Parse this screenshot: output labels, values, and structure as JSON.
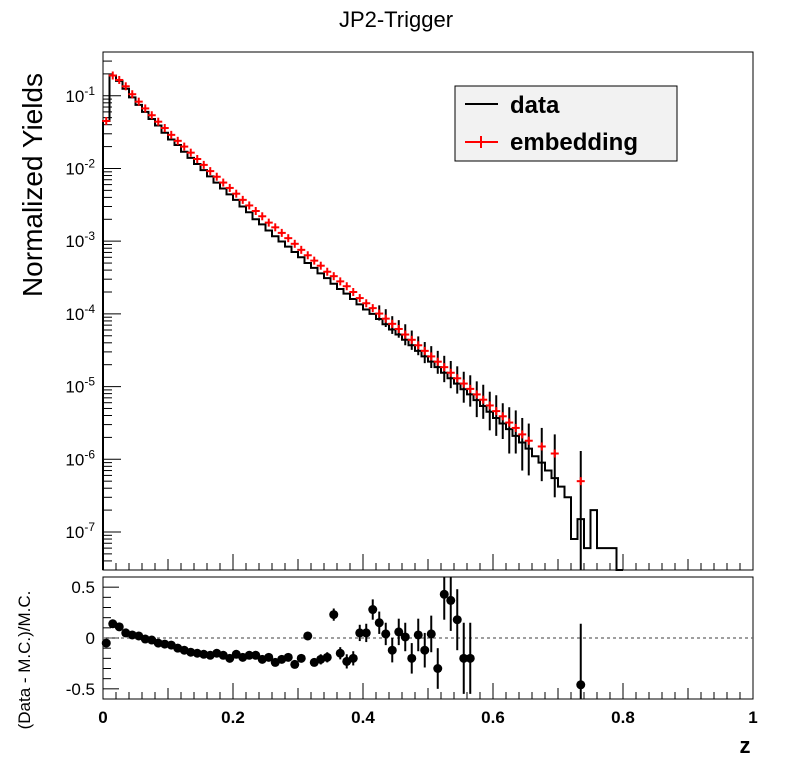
{
  "chart_data": [
    {
      "type": "line",
      "title": "JP2-Trigger",
      "ylabel": "Normalized Yields",
      "xlabel": "",
      "xlim": [
        0,
        1
      ],
      "ylim": [
        3e-08,
        0.4
      ],
      "yscale": "log",
      "grid": false,
      "legend_position": "top-right",
      "xticks": [
        "0",
        "0.2",
        "0.4",
        "0.6",
        "0.8",
        "1"
      ],
      "yticks": [
        {
          "base": "10",
          "exp": "-1",
          "value": 0.1
        },
        {
          "base": "10",
          "exp": "-2",
          "value": 0.01
        },
        {
          "base": "10",
          "exp": "-3",
          "value": 0.001
        },
        {
          "base": "10",
          "exp": "-4",
          "value": 0.0001
        },
        {
          "base": "10",
          "exp": "-5",
          "value": 1e-05
        },
        {
          "base": "10",
          "exp": "-6",
          "value": 1e-06
        },
        {
          "base": "10",
          "exp": "-7",
          "value": 1e-07
        }
      ],
      "series": [
        {
          "name": "data",
          "kind": "histogram",
          "color": "#000000",
          "bin_width": 0.01,
          "x": [
            0.005,
            0.015,
            0.025,
            0.035,
            0.045,
            0.055,
            0.065,
            0.075,
            0.085,
            0.095,
            0.105,
            0.115,
            0.125,
            0.135,
            0.145,
            0.155,
            0.165,
            0.175,
            0.185,
            0.195,
            0.205,
            0.215,
            0.225,
            0.235,
            0.245,
            0.255,
            0.265,
            0.275,
            0.285,
            0.295,
            0.305,
            0.315,
            0.325,
            0.335,
            0.345,
            0.355,
            0.365,
            0.375,
            0.385,
            0.395,
            0.405,
            0.415,
            0.425,
            0.435,
            0.445,
            0.455,
            0.465,
            0.475,
            0.485,
            0.495,
            0.505,
            0.515,
            0.525,
            0.535,
            0.545,
            0.555,
            0.565,
            0.575,
            0.585,
            0.595,
            0.605,
            0.615,
            0.625,
            0.635,
            0.645,
            0.655,
            0.665,
            0.675,
            0.685,
            0.695,
            0.705,
            0.715,
            0.725,
            0.735,
            0.745,
            0.755,
            0.765,
            0.775,
            0.785,
            0.795
          ],
          "y": [
            0.045,
            0.19,
            0.16,
            0.125,
            0.095,
            0.075,
            0.06,
            0.048,
            0.039,
            0.031,
            0.025,
            0.021,
            0.017,
            0.014,
            0.0115,
            0.0095,
            0.0078,
            0.0064,
            0.0053,
            0.0044,
            0.0037,
            0.003,
            0.0025,
            0.002,
            0.0017,
            0.0014,
            0.00117,
            0.00099,
            0.00084,
            0.00071,
            0.0006,
            0.0005,
            0.00043,
            0.00036,
            0.00031,
            0.00026,
            0.00022,
            0.00019,
            0.00016,
            0.000135,
            0.000115,
            0.0001,
            8.5e-05,
            7.2e-05,
            6.1e-05,
            5.2e-05,
            4.4e-05,
            3.7e-05,
            3.1e-05,
            2.6e-05,
            2.2e-05,
            1.85e-05,
            1.55e-05,
            1.3e-05,
            1.1e-05,
            9.2e-06,
            7.8e-06,
            6.5e-06,
            5.4e-06,
            4.5e-06,
            3.7e-06,
            3.1e-06,
            2.6e-06,
            2.1e-06,
            1.7e-06,
            1.4e-06,
            1.1e-06,
            9e-07,
            7e-07,
            5.5e-07,
            4.2e-07,
            3e-07,
            8e-08,
            1.5e-07,
            6e-08,
            2e-07,
            6e-08,
            6e-08,
            6e-08,
            3e-08
          ]
        },
        {
          "name": "embedding",
          "kind": "points",
          "color": "#ff0000",
          "x": [
            0.005,
            0.015,
            0.025,
            0.035,
            0.045,
            0.055,
            0.065,
            0.075,
            0.085,
            0.095,
            0.105,
            0.115,
            0.125,
            0.135,
            0.145,
            0.155,
            0.165,
            0.175,
            0.185,
            0.195,
            0.205,
            0.215,
            0.225,
            0.235,
            0.245,
            0.255,
            0.265,
            0.275,
            0.285,
            0.295,
            0.305,
            0.315,
            0.325,
            0.335,
            0.345,
            0.355,
            0.365,
            0.375,
            0.385,
            0.395,
            0.405,
            0.415,
            0.425,
            0.435,
            0.445,
            0.455,
            0.465,
            0.475,
            0.485,
            0.495,
            0.505,
            0.515,
            0.525,
            0.535,
            0.545,
            0.555,
            0.565,
            0.575,
            0.585,
            0.595,
            0.605,
            0.615,
            0.625,
            0.635,
            0.645,
            0.655,
            0.675,
            0.695,
            0.735
          ],
          "y": [
            0.045,
            0.19,
            0.165,
            0.135,
            0.105,
            0.083,
            0.067,
            0.054,
            0.044,
            0.036,
            0.029,
            0.024,
            0.02,
            0.0165,
            0.0135,
            0.0112,
            0.0092,
            0.0077,
            0.0064,
            0.0054,
            0.0045,
            0.0037,
            0.0031,
            0.0026,
            0.0022,
            0.0018,
            0.00155,
            0.0013,
            0.0011,
            0.00092,
            0.00076,
            0.00064,
            0.00054,
            0.00046,
            0.00038,
            0.00033,
            0.00028,
            0.00024,
            0.0002,
            0.000165,
            0.00014,
            0.00012,
            0.000101,
            8.6e-05,
            7.3e-05,
            6.2e-05,
            5.2e-05,
            4.4e-05,
            3.7e-05,
            3.1e-05,
            2.6e-05,
            2.2e-05,
            1.85e-05,
            1.55e-05,
            1.3e-05,
            1.1e-05,
            9.3e-06,
            7.8e-06,
            6.6e-06,
            5.5e-06,
            4.6e-06,
            3.9e-06,
            3.2e-06,
            2.7e-06,
            2.2e-06,
            1.8e-06,
            1.5e-06,
            1.2e-06,
            5e-07
          ],
          "yerr_lo": [
            0,
            0,
            0,
            0,
            0,
            0,
            0,
            0,
            0,
            0,
            0,
            0,
            0,
            0,
            0,
            0,
            0,
            0,
            0,
            0,
            0,
            0,
            0,
            0,
            0,
            0,
            0,
            0,
            0,
            0,
            0,
            0,
            0,
            0,
            0,
            0,
            0,
            0,
            0,
            0,
            0,
            0,
            2e-05,
            2e-05,
            2e-05,
            1.5e-05,
            1.5e-05,
            1.2e-05,
            1e-05,
            1e-05,
            8e-06,
            7e-06,
            7e-06,
            6e-06,
            5e-06,
            5e-06,
            4e-06,
            4e-06,
            3e-06,
            3e-06,
            2.5e-06,
            2e-06,
            2e-06,
            1.5e-06,
            1.5e-06,
            1.2e-06,
            1e-06,
            9e-07,
            4.8e-07
          ],
          "yerr_hi": [
            0,
            0,
            0,
            0,
            0,
            0,
            0,
            0,
            0,
            0,
            0,
            0,
            0,
            0,
            0,
            0,
            0,
            0,
            0,
            0,
            0,
            0,
            0,
            0,
            0,
            0,
            0,
            0,
            0,
            0,
            0,
            0,
            0,
            0,
            0,
            0,
            0,
            0,
            0,
            0,
            0,
            0,
            3e-05,
            3e-05,
            2e-05,
            2e-05,
            2e-05,
            1.5e-05,
            1.2e-05,
            1e-05,
            1e-05,
            9e-06,
            8e-06,
            7e-06,
            6e-06,
            5e-06,
            5e-06,
            4e-06,
            4e-06,
            3e-06,
            3e-06,
            2e-06,
            2e-06,
            2e-06,
            1.5e-06,
            1.3e-06,
            1.2e-06,
            1e-06,
            8e-07
          ]
        }
      ]
    },
    {
      "type": "scatter",
      "title": "",
      "ylabel": "(Data - M.C.)/M.C.",
      "xlabel": "z",
      "xlim": [
        0,
        1
      ],
      "ylim": [
        -0.6,
        0.6
      ],
      "grid": false,
      "reference_line": 0,
      "xticks": [
        "0",
        "0.2",
        "0.4",
        "0.6",
        "0.8",
        "1"
      ],
      "yticks": [
        {
          "label": "0.5",
          "value": 0.5
        },
        {
          "label": "0",
          "value": 0
        },
        {
          "label": "-0.5",
          "value": -0.5
        }
      ],
      "series": [
        {
          "kind": "points",
          "color": "#000000",
          "x": [
            0.005,
            0.015,
            0.025,
            0.035,
            0.045,
            0.055,
            0.065,
            0.075,
            0.085,
            0.095,
            0.105,
            0.115,
            0.125,
            0.135,
            0.145,
            0.155,
            0.165,
            0.175,
            0.185,
            0.195,
            0.205,
            0.215,
            0.225,
            0.235,
            0.245,
            0.255,
            0.265,
            0.275,
            0.285,
            0.295,
            0.305,
            0.315,
            0.325,
            0.335,
            0.345,
            0.355,
            0.365,
            0.375,
            0.385,
            0.395,
            0.405,
            0.415,
            0.425,
            0.435,
            0.445,
            0.455,
            0.465,
            0.475,
            0.485,
            0.495,
            0.505,
            0.515,
            0.525,
            0.535,
            0.545,
            0.555,
            0.565,
            0.735
          ],
          "y": [
            -0.05,
            0.14,
            0.11,
            0.05,
            0.03,
            0.02,
            -0.01,
            -0.02,
            -0.05,
            -0.06,
            -0.07,
            -0.1,
            -0.12,
            -0.14,
            -0.15,
            -0.16,
            -0.17,
            -0.15,
            -0.17,
            -0.2,
            -0.16,
            -0.19,
            -0.17,
            -0.17,
            -0.21,
            -0.19,
            -0.24,
            -0.21,
            -0.19,
            -0.26,
            -0.2,
            0.02,
            -0.24,
            -0.21,
            -0.19,
            0.23,
            -0.15,
            -0.23,
            -0.2,
            0.05,
            0.05,
            0.28,
            0.15,
            0.04,
            -0.12,
            0.06,
            0.01,
            -0.2,
            0.03,
            -0.12,
            0.04,
            -0.3,
            0.43,
            0.37,
            0.18,
            -0.2,
            -0.2,
            -0.46
          ],
          "yerr": [
            0.01,
            0.01,
            0.01,
            0.01,
            0.01,
            0.01,
            0.01,
            0.01,
            0.01,
            0.01,
            0.01,
            0.01,
            0.01,
            0.01,
            0.01,
            0.01,
            0.01,
            0.01,
            0.01,
            0.01,
            0.01,
            0.01,
            0.02,
            0.02,
            0.02,
            0.02,
            0.02,
            0.03,
            0.03,
            0.03,
            0.03,
            0.04,
            0.04,
            0.05,
            0.05,
            0.06,
            0.06,
            0.07,
            0.07,
            0.08,
            0.09,
            0.1,
            0.11,
            0.11,
            0.12,
            0.13,
            0.14,
            0.15,
            0.16,
            0.17,
            0.18,
            0.2,
            0.25,
            0.3,
            0.3,
            0.35,
            0.35,
            0.6
          ]
        }
      ]
    }
  ]
}
